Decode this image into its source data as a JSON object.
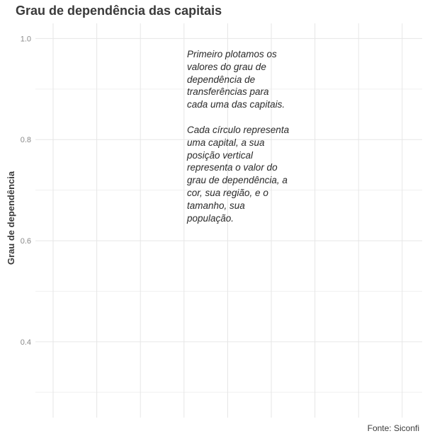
{
  "chart_data": {
    "type": "scatter",
    "title": "Grau de dependência das capitais",
    "xlabel": "",
    "ylabel": "Grau de dependência",
    "ylim": [
      0.25,
      1.03
    ],
    "yticks": [
      0.4,
      0.6,
      0.8,
      1.0
    ],
    "ytick_labels": [
      "0.4",
      "0.6",
      "0.8",
      "1.0"
    ],
    "grid": true,
    "series": [],
    "annotation": [
      "Primeiro plotamos os valores do grau de dependência de transferências para cada uma das capitais.",
      "Cada círculo representa uma capital, a sua posição vertical representa o valor do grau de dependência, a cor, sua região, e o tamanho, sua população."
    ],
    "caption": "Fonte: Siconfi"
  }
}
